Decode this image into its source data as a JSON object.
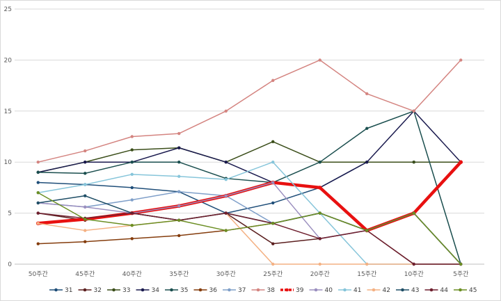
{
  "chart_data": {
    "type": "line",
    "title": "",
    "xlabel": "",
    "ylabel": "",
    "ylim": [
      0,
      25
    ],
    "yticks": [
      0,
      5,
      10,
      15,
      20,
      25
    ],
    "grid": "horizontal",
    "legend": "bottom",
    "categories": [
      "50주간",
      "45주간",
      "40주간",
      "35주간",
      "30주간",
      "25주간",
      "20주간",
      "15주간",
      "10주간",
      "5주간"
    ],
    "series": [
      {
        "name": "31",
        "color": "#1f4e79",
        "width": 1.5,
        "values": [
          8,
          7.8,
          7.5,
          7.1,
          5,
          6,
          7.5,
          10,
          10,
          10
        ]
      },
      {
        "name": "32",
        "color": "#5b1f1f",
        "width": 1.5,
        "values": [
          5,
          4.3,
          5,
          4.3,
          5,
          2,
          2.5,
          3.3,
          0,
          0
        ]
      },
      {
        "name": "33",
        "color": "#3b4e1a",
        "width": 1.5,
        "values": [
          9,
          10,
          11.2,
          11.4,
          10,
          12,
          10,
          10,
          10,
          10
        ]
      },
      {
        "name": "34",
        "color": "#1a1a4e",
        "width": 1.5,
        "values": [
          9,
          10,
          10,
          11.4,
          10,
          8,
          7.5,
          10,
          15,
          10
        ]
      },
      {
        "name": "35",
        "color": "#1a4e4e",
        "width": 1.5,
        "values": [
          9,
          8.9,
          10,
          10,
          8.4,
          8,
          10,
          13.3,
          15,
          0
        ]
      },
      {
        "name": "36",
        "color": "#843c0c",
        "width": 1.5,
        "values": [
          2,
          2.2,
          2.5,
          2.8,
          3.3,
          4,
          5,
          3.3,
          5,
          0
        ]
      },
      {
        "name": "37",
        "color": "#7f9fc9",
        "width": 1.5,
        "values": [
          6,
          5.6,
          6.3,
          7.1,
          6.7,
          4,
          5,
          3.3,
          5,
          0
        ]
      },
      {
        "name": "38",
        "color": "#d48480",
        "width": 1.5,
        "values": [
          10,
          11.1,
          12.5,
          12.8,
          15,
          18,
          20,
          16.7,
          15,
          20
        ]
      },
      {
        "name": "39",
        "color": "#e81010",
        "width": 4.5,
        "values": [
          4,
          4.4,
          5,
          5.7,
          6.7,
          8,
          7.5,
          3.3,
          5,
          10
        ]
      },
      {
        "name": "40",
        "color": "#9b8fbf",
        "width": 1.5,
        "values": [
          6,
          5.6,
          5,
          5.7,
          6.7,
          8,
          2.5,
          3.3,
          5,
          0
        ]
      },
      {
        "name": "41",
        "color": "#86c5da",
        "width": 1.5,
        "values": [
          7,
          7.8,
          8.8,
          8.6,
          8.3,
          10,
          5,
          0,
          0,
          0
        ]
      },
      {
        "name": "42",
        "color": "#f4b183",
        "width": 1.5,
        "values": [
          4,
          3.3,
          3.8,
          4.3,
          5,
          0,
          0,
          0,
          0,
          0
        ]
      },
      {
        "name": "43",
        "color": "#1f4e66",
        "width": 1.5,
        "values": [
          6,
          6.7,
          5,
          4.3,
          5,
          4,
          5,
          3.3,
          5,
          0
        ]
      },
      {
        "name": "44",
        "color": "#6e1f2e",
        "width": 1.5,
        "values": [
          5,
          4.5,
          5,
          4.3,
          5,
          4,
          2.5,
          3.3,
          0,
          0
        ]
      },
      {
        "name": "45",
        "color": "#6b8e23",
        "width": 1.5,
        "values": [
          7,
          4.4,
          3.8,
          4.3,
          3.3,
          4,
          5,
          3.3,
          5,
          0
        ]
      }
    ]
  }
}
